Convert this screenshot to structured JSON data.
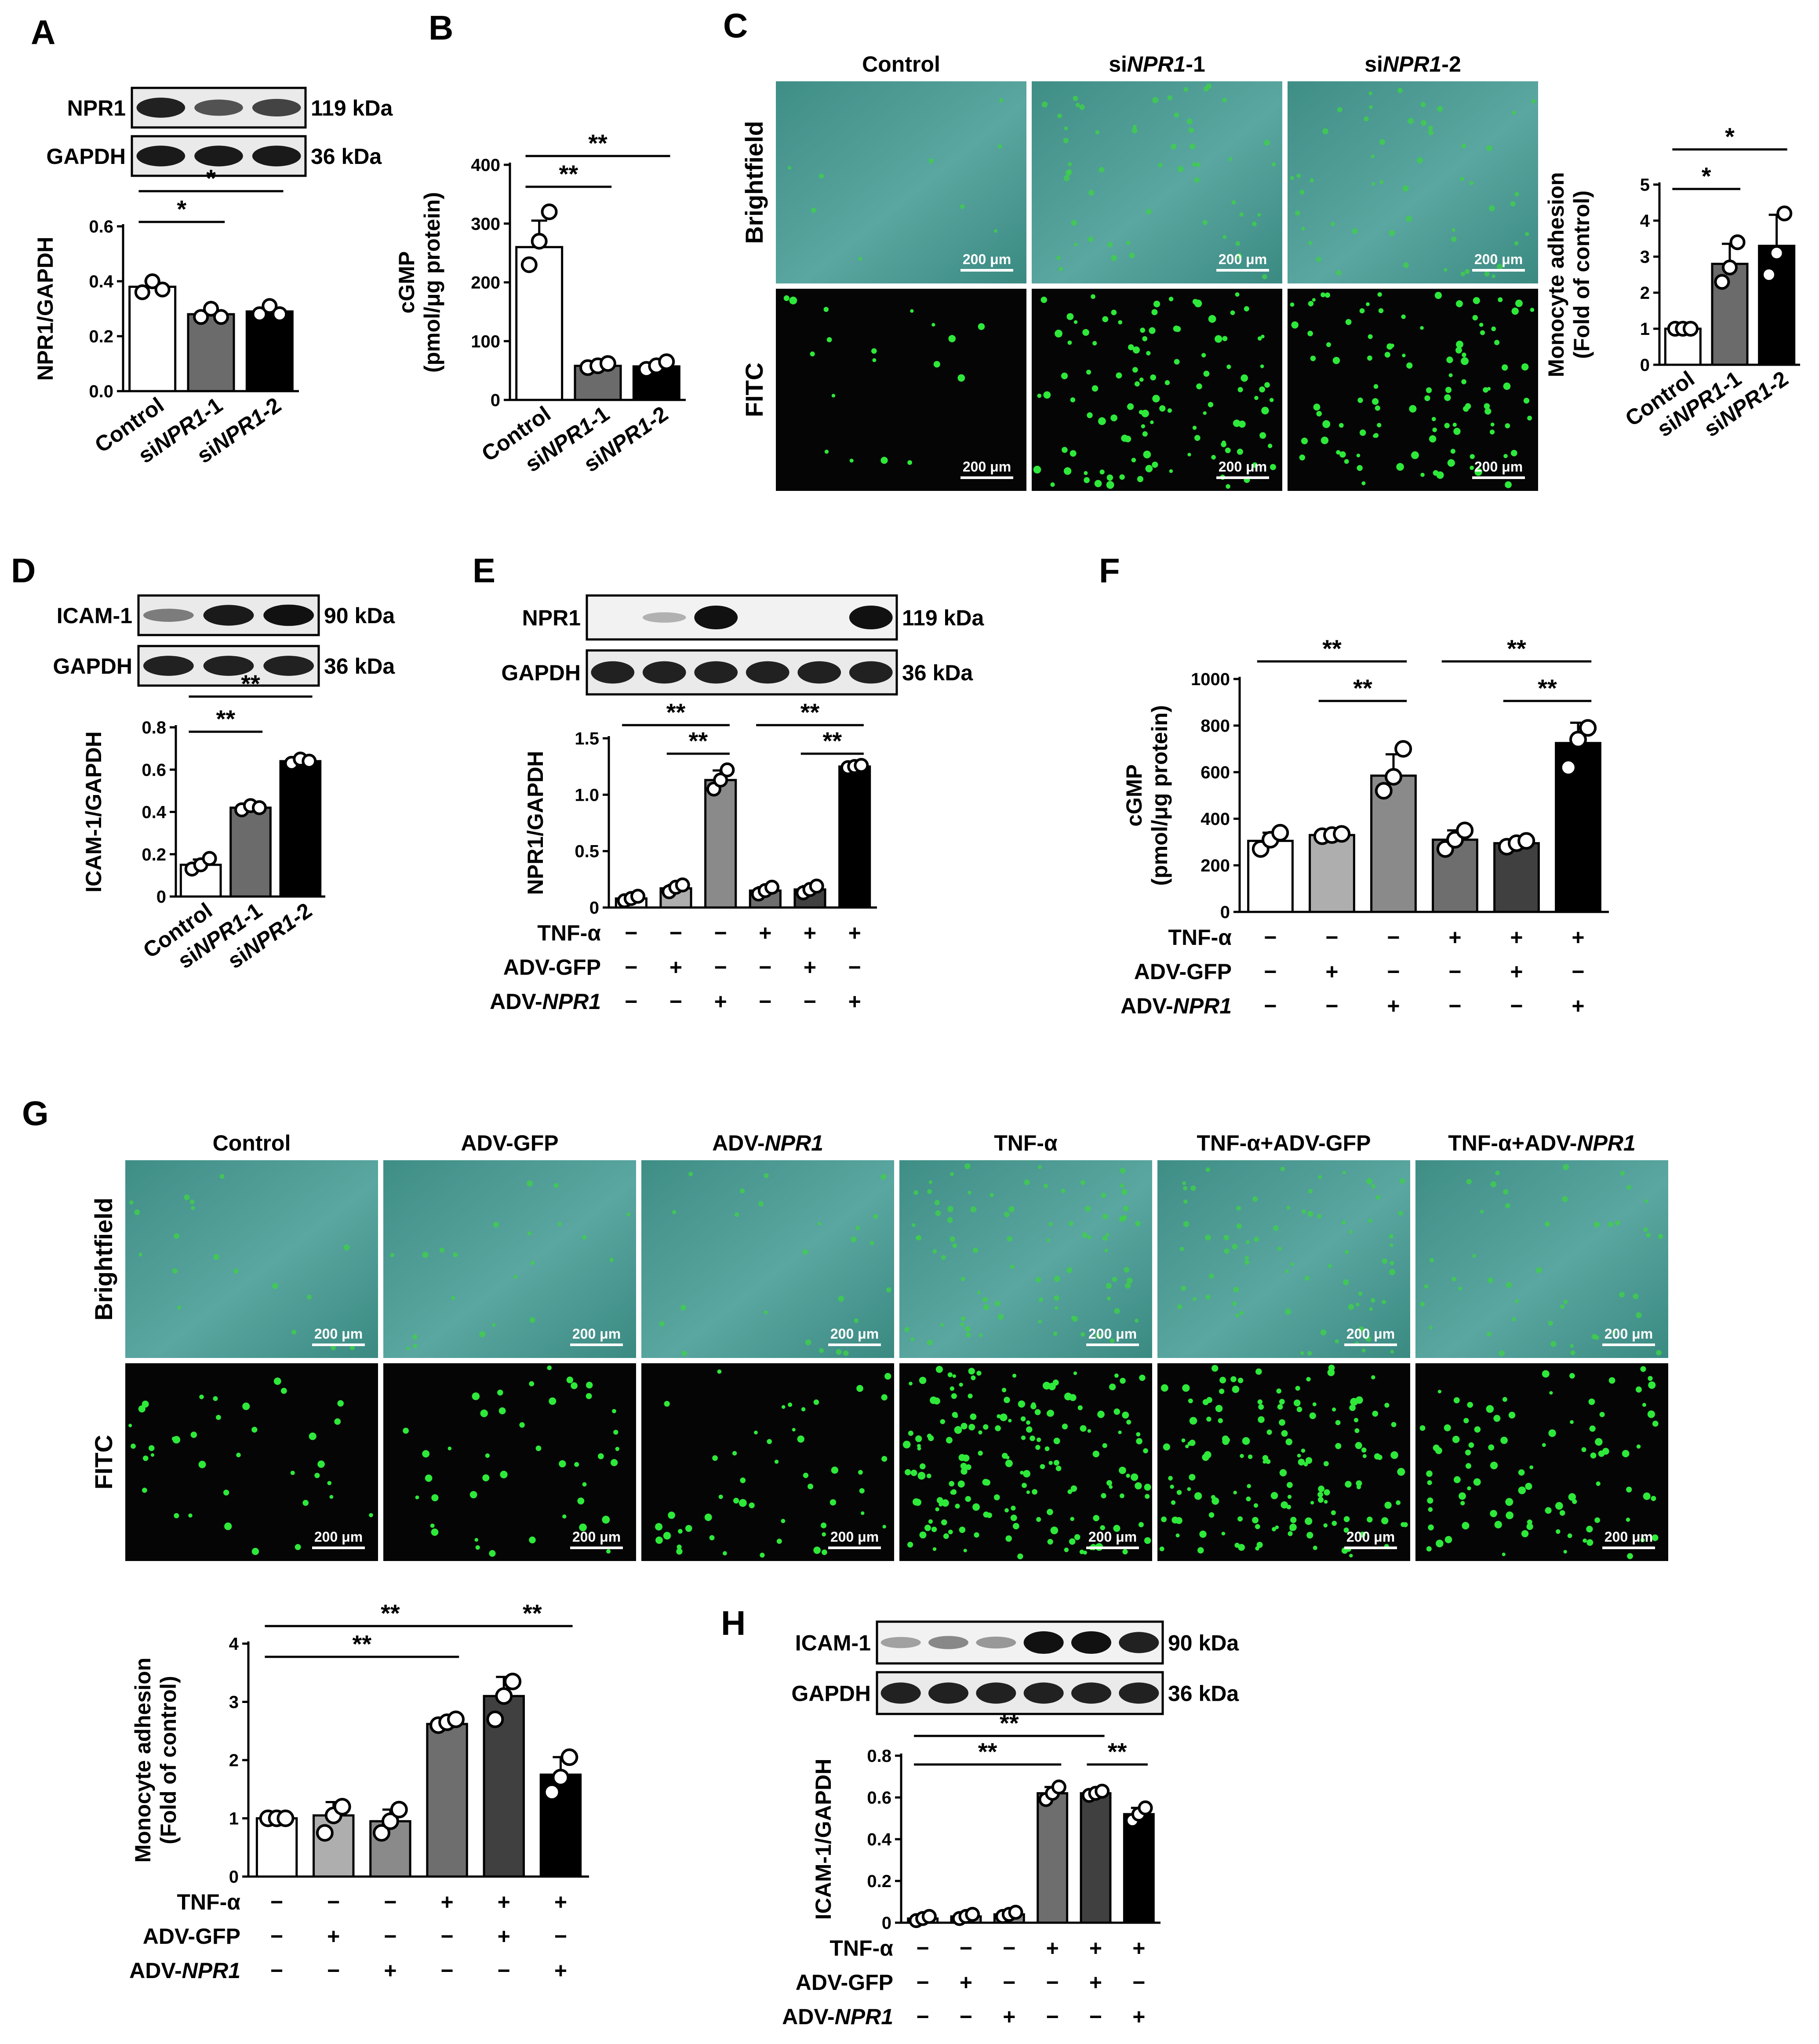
{
  "panels": {
    "A": {
      "letter": "A",
      "blot": {
        "proteins": [
          {
            "name": "NPR1",
            "size": "119 kDa"
          },
          {
            "name": "GAPDH",
            "size": "36 kDa"
          }
        ],
        "lanes": 3
      },
      "chart": {
        "type": "bar",
        "ylabel": "NPR1/GAPDH",
        "yticks": [
          "0.0",
          "0.2",
          "0.4",
          "0.6"
        ],
        "ylim": [
          0,
          0.6
        ],
        "categories": [
          {
            "pre": "",
            "it": "",
            "post": "Control"
          },
          {
            "pre": "si",
            "it": "NPR1",
            "post": "-1"
          },
          {
            "pre": "si",
            "it": "NPR1",
            "post": "-2"
          }
        ],
        "values": [
          0.38,
          0.28,
          0.29
        ],
        "points": [
          [
            0.36,
            0.4,
            0.37
          ],
          [
            0.27,
            0.3,
            0.27
          ],
          [
            0.28,
            0.31,
            0.28
          ]
        ],
        "sig": [
          {
            "a": 0,
            "b": 1,
            "text": "*"
          },
          {
            "a": 0,
            "b": 2,
            "text": "*"
          }
        ]
      }
    },
    "B": {
      "letter": "B",
      "chart": {
        "type": "bar",
        "ylabel": "cGMP",
        "ylabel2": "(pmol/μg protein)",
        "yticks": [
          "0",
          "100",
          "200",
          "300",
          "400"
        ],
        "ylim": [
          0,
          400
        ],
        "categories": [
          {
            "pre": "",
            "it": "",
            "post": "Control"
          },
          {
            "pre": "si",
            "it": "NPR1",
            "post": "-1"
          },
          {
            "pre": "si",
            "it": "NPR1",
            "post": "-2"
          }
        ],
        "values": [
          260,
          58,
          57
        ],
        "points": [
          [
            230,
            270,
            320
          ],
          [
            55,
            58,
            62
          ],
          [
            52,
            58,
            65
          ]
        ],
        "sig": [
          {
            "a": 0,
            "b": 1,
            "text": "**"
          },
          {
            "a": 0,
            "b": 2,
            "text": "**"
          }
        ]
      }
    },
    "C": {
      "letter": "C",
      "columns": [
        {
          "pre": "",
          "it": "",
          "post": "Control"
        },
        {
          "pre": "si",
          "it": "NPR1",
          "post": "-1"
        },
        {
          "pre": "si",
          "it": "NPR1",
          "post": "-2"
        }
      ],
      "rows": [
        "Brightfield",
        "FITC"
      ],
      "scale": "200 μm",
      "chart": {
        "type": "bar",
        "ylabel": "Monocyte adhesion",
        "ylabel2": "(Fold of control)",
        "yticks": [
          "0",
          "1",
          "2",
          "3",
          "4",
          "5"
        ],
        "ylim": [
          0,
          5
        ],
        "categories": [
          {
            "pre": "",
            "it": "",
            "post": "Control"
          },
          {
            "pre": "si",
            "it": "NPR1",
            "post": "-1"
          },
          {
            "pre": "si",
            "it": "NPR1",
            "post": "-2"
          }
        ],
        "values": [
          1.0,
          2.8,
          3.3
        ],
        "points": [
          [
            1,
            1,
            1
          ],
          [
            2.3,
            2.7,
            3.4
          ],
          [
            2.5,
            3.1,
            4.2
          ]
        ],
        "sig": [
          {
            "a": 0,
            "b": 1,
            "text": "*"
          },
          {
            "a": 0,
            "b": 2,
            "text": "*"
          }
        ]
      }
    },
    "D": {
      "letter": "D",
      "blot": {
        "proteins": [
          {
            "name": "ICAM-1",
            "size": "90 kDa"
          },
          {
            "name": "GAPDH",
            "size": "36 kDa"
          }
        ],
        "lanes": 3
      },
      "chart": {
        "type": "bar",
        "ylabel": "ICAM-1/GAPDH",
        "yticks": [
          "0",
          "0.2",
          "0.4",
          "0.6",
          "0.8"
        ],
        "ylim": [
          0,
          0.8
        ],
        "categories": [
          {
            "pre": "",
            "it": "",
            "post": "Control"
          },
          {
            "pre": "si",
            "it": "NPR1",
            "post": "-1"
          },
          {
            "pre": "si",
            "it": "NPR1",
            "post": "-2"
          }
        ],
        "values": [
          0.15,
          0.42,
          0.64
        ],
        "points": [
          [
            0.13,
            0.15,
            0.18
          ],
          [
            0.41,
            0.43,
            0.42
          ],
          [
            0.63,
            0.65,
            0.64
          ]
        ],
        "sig": [
          {
            "a": 0,
            "b": 1,
            "text": "**"
          },
          {
            "a": 0,
            "b": 2,
            "text": "**"
          }
        ]
      }
    },
    "E": {
      "letter": "E",
      "blot": {
        "proteins": [
          {
            "name": "NPR1",
            "size": "119 kDa"
          },
          {
            "name": "GAPDH",
            "size": "36 kDa"
          }
        ],
        "lanes": 6
      },
      "chart": {
        "type": "bar",
        "ylabel": "NPR1/GAPDH",
        "yticks": [
          "0",
          "0.5",
          "1.0",
          "1.5"
        ],
        "ylim": [
          0,
          1.5
        ],
        "treatments": [
          {
            "pre": "TNF-α",
            "it": "",
            "signs": [
              "−",
              "−",
              "−",
              "+",
              "+",
              "+"
            ]
          },
          {
            "pre": "ADV-GFP",
            "it": "",
            "signs": [
              "−",
              "+",
              "−",
              "−",
              "+",
              "−"
            ]
          },
          {
            "pre": "ADV-",
            "it": "NPR1",
            "signs": [
              "−",
              "−",
              "+",
              "−",
              "−",
              "+"
            ]
          }
        ],
        "values": [
          0.08,
          0.17,
          1.13,
          0.15,
          0.16,
          1.25
        ],
        "points": [
          [
            0.06,
            0.08,
            0.1
          ],
          [
            0.14,
            0.18,
            0.2
          ],
          [
            1.05,
            1.13,
            1.22
          ],
          [
            0.12,
            0.15,
            0.18
          ],
          [
            0.13,
            0.16,
            0.19
          ],
          [
            1.24,
            1.25,
            1.26
          ]
        ],
        "sig": [
          {
            "a": 0,
            "b": 2,
            "text": "**"
          },
          {
            "a": 1,
            "b": 2,
            "text": "**"
          },
          {
            "a": 3,
            "b": 5,
            "text": "**"
          },
          {
            "a": 4,
            "b": 5,
            "text": "**"
          }
        ]
      }
    },
    "F": {
      "letter": "F",
      "chart": {
        "type": "bar",
        "ylabel": "cGMP",
        "ylabel2": "(pmol/μg protein)",
        "yticks": [
          "0",
          "200",
          "400",
          "600",
          "800",
          "1000"
        ],
        "ylim": [
          0,
          1000
        ],
        "treatments": [
          {
            "pre": "TNF-α",
            "it": "",
            "signs": [
              "−",
              "−",
              "−",
              "+",
              "+",
              "+"
            ]
          },
          {
            "pre": "ADV-GFP",
            "it": "",
            "signs": [
              "−",
              "+",
              "−",
              "−",
              "+",
              "−"
            ]
          },
          {
            "pre": "ADV-",
            "it": "NPR1",
            "signs": [
              "−",
              "−",
              "+",
              "−",
              "−",
              "+"
            ]
          }
        ],
        "values": [
          305,
          330,
          585,
          310,
          295,
          725
        ],
        "points": [
          [
            270,
            310,
            340
          ],
          [
            325,
            330,
            335
          ],
          [
            520,
            580,
            700
          ],
          [
            270,
            310,
            350
          ],
          [
            280,
            295,
            305
          ],
          [
            620,
            740,
            790
          ]
        ],
        "sig": [
          {
            "a": 0,
            "b": 2,
            "text": "**"
          },
          {
            "a": 1,
            "b": 2,
            "text": "**"
          },
          {
            "a": 3,
            "b": 5,
            "text": "**"
          },
          {
            "a": 4,
            "b": 5,
            "text": "**"
          }
        ]
      }
    },
    "G": {
      "letter": "G",
      "columns": [
        {
          "pre": "Control",
          "it": "",
          "post": ""
        },
        {
          "pre": "ADV-GFP",
          "it": "",
          "post": ""
        },
        {
          "pre": "ADV-",
          "it": "NPR1",
          "post": ""
        },
        {
          "pre": "TNF-α",
          "it": "",
          "post": ""
        },
        {
          "pre": "TNF-α+ADV-GFP",
          "it": "",
          "post": ""
        },
        {
          "pre": "TNF-α+ADV-",
          "it": "NPR1",
          "post": ""
        }
      ],
      "rows": [
        "Brightfield",
        "FITC"
      ],
      "scale": "200 μm",
      "chart": {
        "type": "bar",
        "ylabel": "Monocyte adhesion",
        "ylabel2": "(Fold of control)",
        "yticks": [
          "0",
          "1",
          "2",
          "3",
          "4"
        ],
        "ylim": [
          0,
          4
        ],
        "treatments": [
          {
            "pre": "TNF-α",
            "it": "",
            "signs": [
              "−",
              "−",
              "−",
              "+",
              "+",
              "+"
            ]
          },
          {
            "pre": "ADV-GFP",
            "it": "",
            "signs": [
              "−",
              "+",
              "−",
              "−",
              "+",
              "−"
            ]
          },
          {
            "pre": "ADV-",
            "it": "NPR1",
            "signs": [
              "−",
              "−",
              "+",
              "−",
              "−",
              "+"
            ]
          }
        ],
        "values": [
          1.0,
          1.05,
          0.95,
          2.62,
          3.1,
          1.75
        ],
        "points": [
          [
            1,
            1,
            1
          ],
          [
            0.75,
            1.05,
            1.2
          ],
          [
            0.75,
            0.95,
            1.15
          ],
          [
            2.6,
            2.65,
            2.7
          ],
          [
            2.7,
            3.1,
            3.35
          ],
          [
            1.45,
            1.7,
            2.05
          ]
        ],
        "sig": [
          {
            "a": 0,
            "b": 3,
            "text": "**"
          },
          {
            "a": 0,
            "b": 4,
            "text": "**"
          },
          {
            "a": 4,
            "b": 5,
            "text": "**"
          }
        ]
      }
    },
    "H": {
      "letter": "H",
      "blot": {
        "proteins": [
          {
            "name": "ICAM-1",
            "size": "90 kDa"
          },
          {
            "name": "GAPDH",
            "size": "36 kDa"
          }
        ],
        "lanes": 6
      },
      "chart": {
        "type": "bar",
        "ylabel": "ICAM-1/GAPDH",
        "yticks": [
          "0",
          "0.2",
          "0.4",
          "0.6",
          "0.8"
        ],
        "ylim": [
          0,
          0.8
        ],
        "treatments": [
          {
            "pre": "TNF-α",
            "it": "",
            "signs": [
              "−",
              "−",
              "−",
              "+",
              "+",
              "+"
            ]
          },
          {
            "pre": "ADV-GFP",
            "it": "",
            "signs": [
              "−",
              "+",
              "−",
              "−",
              "+",
              "−"
            ]
          },
          {
            "pre": "ADV-",
            "it": "NPR1",
            "signs": [
              "−",
              "−",
              "+",
              "−",
              "−",
              "+"
            ]
          }
        ],
        "values": [
          0.02,
          0.03,
          0.04,
          0.62,
          0.62,
          0.52
        ],
        "points": [
          [
            0.01,
            0.02,
            0.03
          ],
          [
            0.02,
            0.03,
            0.04
          ],
          [
            0.03,
            0.04,
            0.05
          ],
          [
            0.59,
            0.62,
            0.65
          ],
          [
            0.61,
            0.62,
            0.63
          ],
          [
            0.49,
            0.52,
            0.55
          ]
        ],
        "sig": [
          {
            "a": 0,
            "b": 3,
            "text": "**"
          },
          {
            "a": 0,
            "b": 4,
            "text": "**"
          },
          {
            "a": 4,
            "b": 5,
            "text": "**"
          }
        ]
      }
    }
  },
  "chart_data": [
    {
      "panel": "A",
      "type": "bar",
      "categories": [
        "Control",
        "siNPR1-1",
        "siNPR1-2"
      ],
      "values": [
        0.38,
        0.28,
        0.29
      ],
      "ylabel": "NPR1/GAPDH",
      "ylim": [
        0,
        0.6
      ]
    },
    {
      "panel": "B",
      "type": "bar",
      "categories": [
        "Control",
        "siNPR1-1",
        "siNPR1-2"
      ],
      "values": [
        260,
        58,
        57
      ],
      "ylabel": "cGMP (pmol/μg protein)",
      "ylim": [
        0,
        400
      ]
    },
    {
      "panel": "C",
      "type": "bar",
      "categories": [
        "Control",
        "siNPR1-1",
        "siNPR1-2"
      ],
      "values": [
        1.0,
        2.8,
        3.3
      ],
      "ylabel": "Monocyte adhesion (Fold of control)",
      "ylim": [
        0,
        5
      ]
    },
    {
      "panel": "D",
      "type": "bar",
      "categories": [
        "Control",
        "siNPR1-1",
        "siNPR1-2"
      ],
      "values": [
        0.15,
        0.42,
        0.64
      ],
      "ylabel": "ICAM-1/GAPDH",
      "ylim": [
        0,
        0.8
      ]
    },
    {
      "panel": "E",
      "type": "bar",
      "values": [
        0.08,
        0.17,
        1.13,
        0.15,
        0.16,
        1.25
      ],
      "ylabel": "NPR1/GAPDH",
      "ylim": [
        0,
        1.5
      ]
    },
    {
      "panel": "F",
      "type": "bar",
      "values": [
        305,
        330,
        585,
        310,
        295,
        725
      ],
      "ylabel": "cGMP (pmol/μg protein)",
      "ylim": [
        0,
        1000
      ]
    },
    {
      "panel": "G",
      "type": "bar",
      "values": [
        1.0,
        1.05,
        0.95,
        2.62,
        3.1,
        1.75
      ],
      "ylabel": "Monocyte adhesion (Fold of control)",
      "ylim": [
        0,
        4
      ]
    },
    {
      "panel": "H",
      "type": "bar",
      "values": [
        0.02,
        0.03,
        0.04,
        0.62,
        0.62,
        0.52
      ],
      "ylabel": "ICAM-1/GAPDH",
      "ylim": [
        0,
        0.8
      ]
    }
  ]
}
